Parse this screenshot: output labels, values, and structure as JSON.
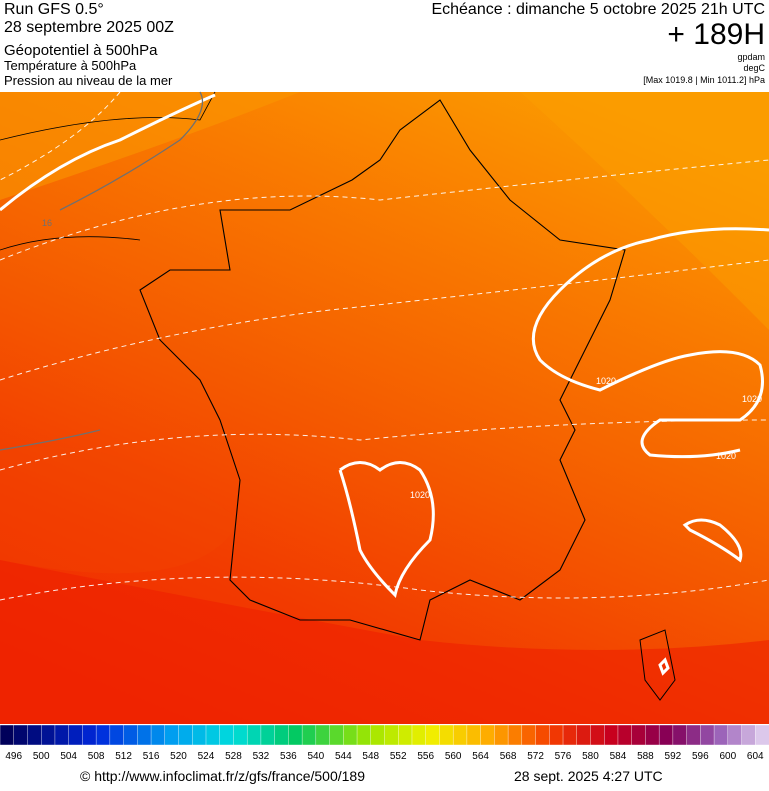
{
  "header": {
    "run": "Run GFS 0.5°",
    "run_date": "28 septembre 2025 00Z",
    "field1": "Géopotentiel à 500hPa",
    "field2": "Température à 500hPa",
    "field3": "Pression au niveau de la mer",
    "valid": "Echéance : dimanche 5 octobre 2025 21h UTC",
    "lead": "+ 189H",
    "unit1": "gpdam",
    "unit2": "degC",
    "range": "[Max 1019.8 | Min 1011.2] hPa"
  },
  "map": {
    "contour_labels": [
      "1020",
      "1020",
      "1020",
      "1020",
      "16"
    ]
  },
  "scale": {
    "labels": [
      496,
      500,
      504,
      508,
      512,
      516,
      520,
      524,
      528,
      532,
      536,
      540,
      544,
      548,
      552,
      556,
      560,
      564,
      568,
      572,
      576,
      580,
      584,
      588,
      592,
      596,
      600,
      604
    ]
  },
  "footer": {
    "source": "© http://www.infoclimat.fr/z/gfs/france/500/189",
    "generated": "28 sept. 2025  4:27 UTC"
  }
}
